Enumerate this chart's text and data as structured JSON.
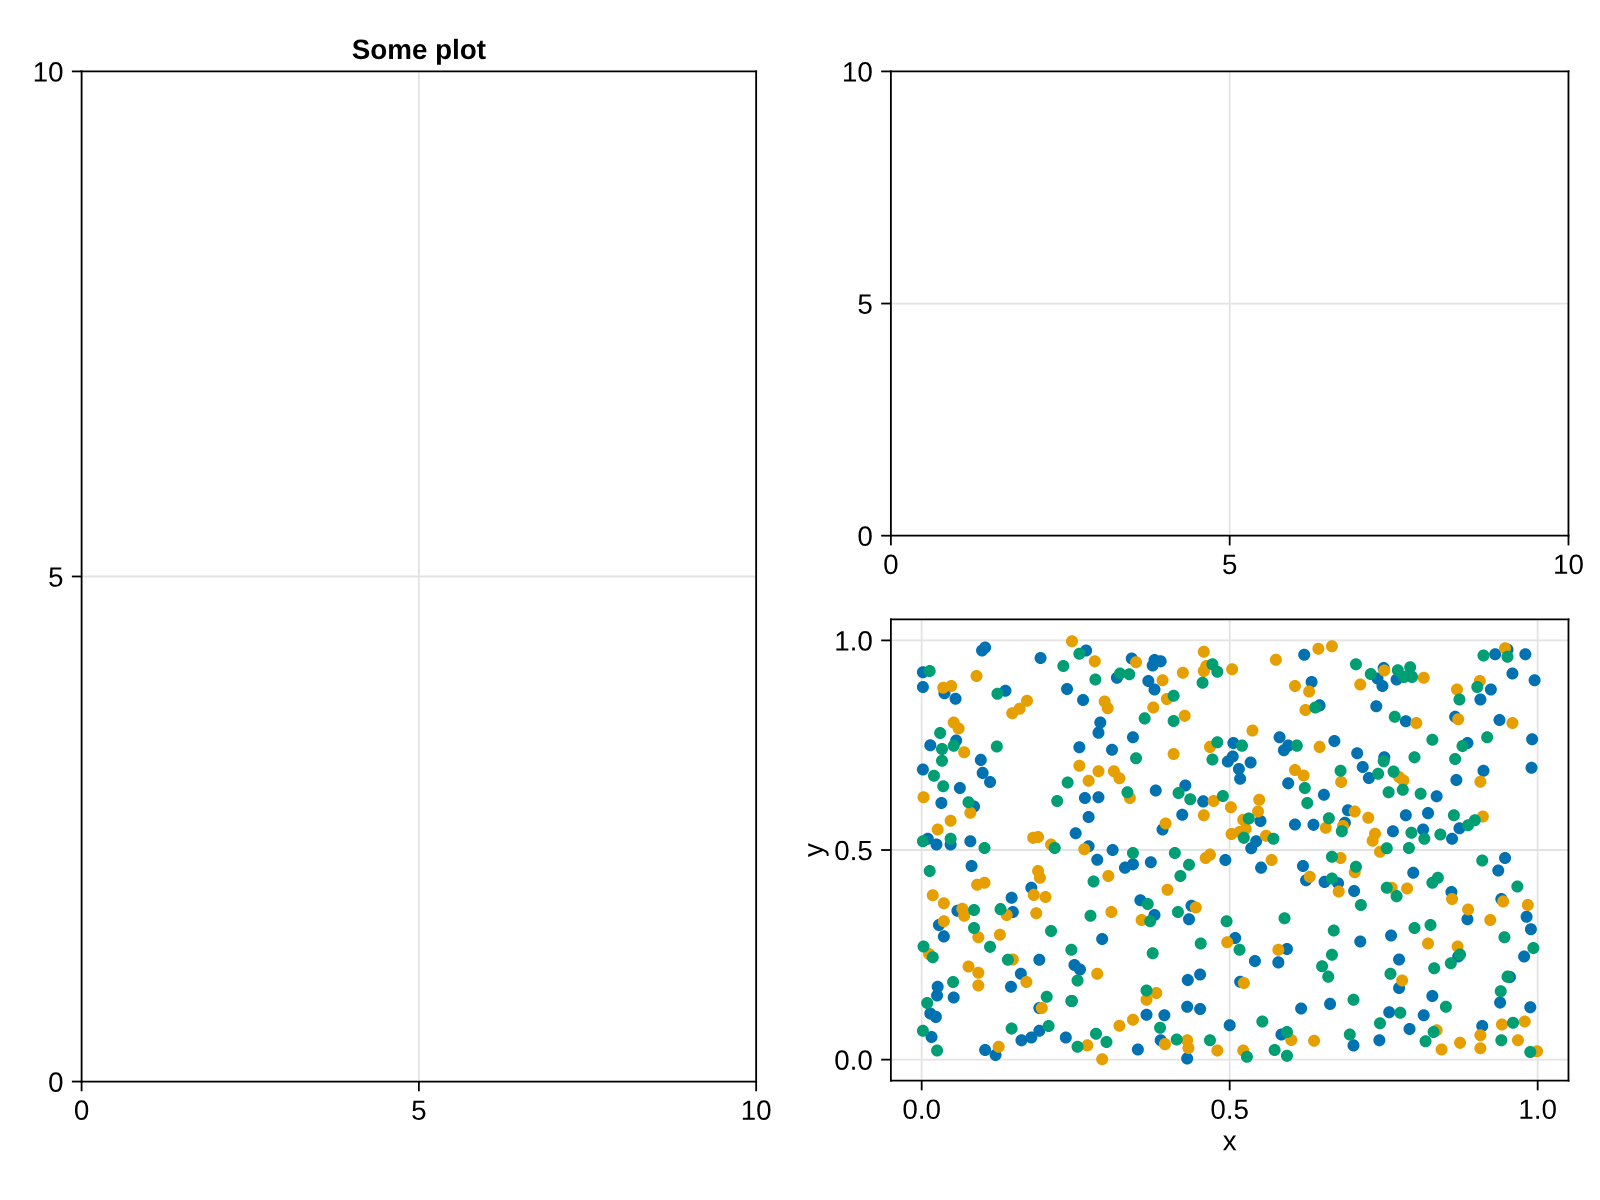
{
  "chart_data": [
    {
      "type": "scatter",
      "title": "Some plot",
      "xlim": [
        0,
        10
      ],
      "ylim": [
        0,
        10
      ],
      "xticks": [
        0,
        5,
        10
      ],
      "yticks": [
        0,
        5,
        10
      ],
      "grid": true
    },
    {
      "type": "scatter",
      "xlim": [
        0,
        10
      ],
      "ylim": [
        0,
        10
      ],
      "xticks": [
        0,
        5,
        10
      ],
      "yticks": [
        0,
        5,
        10
      ],
      "grid": true
    },
    {
      "type": "scatter",
      "xlabel": "x",
      "ylabel": "y",
      "xlim": [
        -0.05,
        1.05
      ],
      "ylim": [
        -0.05,
        1.05
      ],
      "xticks": [
        {
          "value": 0,
          "label": "0.0"
        },
        {
          "value": 0.5,
          "label": "0.5"
        },
        {
          "value": 1,
          "label": "1.0"
        }
      ],
      "yticks": [
        {
          "value": 0,
          "label": "0.0"
        },
        {
          "value": 0.5,
          "label": "0.5"
        },
        {
          "value": 1,
          "label": "1.0"
        }
      ],
      "grid": true,
      "marker": "circle",
      "series": [
        {
          "color": "#0072b2",
          "x": [
            0.103,
            0.098,
            0.267,
            0.193,
            0.002,
            0.317,
            0.002,
            0.037,
            0.055,
            0.136,
            0.236,
            0.262,
            0.29,
            0.287,
            0.056,
            0.014,
            0.256,
            0.309,
            0.096,
            0.002,
            0.099,
            0.111,
            0.062,
            0.032,
            0.085,
            0.265,
            0.287,
            0.271,
            0.25,
            0.01,
            0.024,
            0.047,
            0.079,
            0.271,
            0.31,
            0.341,
            0.378,
            0.388,
            0.375,
            0.368,
            0.378,
            0.621,
            0.633,
            0.646,
            0.343,
            0.581,
            0.595,
            0.588,
            0.67,
            0.506,
            0.497,
            0.505,
            0.534,
            0.515,
            0.517,
            0.595,
            0.653,
            0.428,
            0.457,
            0.38,
            0.423,
            0.391,
            0.55,
            0.543,
            0.535,
            0.606,
            0.636,
            0.687,
            0.692,
            0.74,
            0.748,
            0.75,
            0.771,
            0.738,
            0.786,
            0.951,
            0.931,
            0.98,
            0.959,
            0.995,
            0.924,
            0.907,
            0.866,
            0.938,
            0.886,
            0.991,
            0.707,
            0.716,
            0.726,
            0.751,
            0.99,
            0.912,
            0.868,
            0.836,
            0.786,
            0.822,
            0.873,
            0.765,
            0.814,
            0.861,
            0.285,
            0.081,
            0.178,
            0.146,
            0.058,
            0.148,
            0.028,
            0.036,
            0.293,
            0.191,
            0.248,
            0.257,
            0.161,
            0.145,
            0.026,
            0.025,
            0.052,
            0.191,
            0.243,
            0.014,
            0.023,
            0.016,
            0.162,
            0.178,
            0.191,
            0.234,
            0.103,
            0.12,
            0.33,
            0.343,
            0.372,
            0.493,
            0.551,
            0.619,
            0.624,
            0.654,
            0.676,
            0.355,
            0.378,
            0.438,
            0.434,
            0.509,
            0.541,
            0.593,
            0.579,
            0.432,
            0.452,
            0.517,
            0.431,
            0.452,
            0.616,
            0.663,
            0.365,
            0.394,
            0.388,
            0.5,
            0.584,
            0.351,
            0.431,
            0.947,
            0.936,
            0.798,
            0.702,
            0.86,
            0.941,
            0.982,
            0.989,
            0.886,
            0.712,
            0.762,
            0.978,
            0.871,
            0.775,
            0.775,
            0.955,
            0.939,
            0.829,
            0.988,
            0.759,
            0.815,
            0.792,
            0.91,
            0.701,
            0.743
          ],
          "values": [
            0.983,
            0.976,
            0.976,
            0.958,
            0.924,
            0.911,
            0.889,
            0.874,
            0.861,
            0.88,
            0.884,
            0.858,
            0.804,
            0.78,
            0.761,
            0.75,
            0.745,
            0.739,
            0.715,
            0.692,
            0.684,
            0.662,
            0.648,
            0.612,
            0.604,
            0.624,
            0.626,
            0.579,
            0.54,
            0.527,
            0.513,
            0.513,
            0.521,
            0.509,
            0.5,
            0.957,
            0.953,
            0.95,
            0.94,
            0.903,
            0.883,
            0.966,
            0.901,
            0.845,
            0.769,
            0.769,
            0.749,
            0.738,
            0.76,
            0.755,
            0.711,
            0.723,
            0.709,
            0.693,
            0.67,
            0.659,
            0.632,
            0.654,
            0.616,
            0.642,
            0.584,
            0.549,
            0.569,
            0.521,
            0.504,
            0.561,
            0.56,
            0.565,
            0.595,
            0.909,
            0.891,
            0.934,
            0.907,
            0.843,
            0.807,
            0.978,
            0.967,
            0.967,
            0.921,
            0.905,
            0.883,
            0.859,
            0.818,
            0.81,
            0.755,
            0.764,
            0.731,
            0.698,
            0.672,
            0.721,
            0.696,
            0.689,
            0.667,
            0.628,
            0.583,
            0.588,
            0.552,
            0.545,
            0.549,
            0.527,
            0.477,
            0.462,
            0.41,
            0.386,
            0.355,
            0.352,
            0.321,
            0.294,
            0.288,
            0.238,
            0.226,
            0.215,
            0.205,
            0.174,
            0.174,
            0.153,
            0.148,
            0.123,
            0.14,
            0.11,
            0.102,
            0.054,
            0.046,
            0.053,
            0.069,
            0.053,
            0.023,
            0.011,
            0.458,
            0.466,
            0.471,
            0.476,
            0.458,
            0.462,
            0.428,
            0.424,
            0.421,
            0.38,
            0.345,
            0.367,
            0.335,
            0.29,
            0.235,
            0.264,
            0.232,
            0.19,
            0.203,
            0.186,
            0.126,
            0.121,
            0.122,
            0.133,
            0.107,
            0.106,
            0.046,
            0.082,
            0.06,
            0.024,
            0.003,
            0.481,
            0.451,
            0.446,
            0.402,
            0.4,
            0.383,
            0.341,
            0.311,
            0.335,
            0.282,
            0.296,
            0.246,
            0.246,
            0.239,
            0.171,
            0.197,
            0.136,
            0.152,
            0.125,
            0.113,
            0.106,
            0.073,
            0.08,
            0.034,
            0.046
          ]
        },
        {
          "color": "#e69f00",
          "x": [
            0.244,
            0.281,
            0.089,
            0.035,
            0.048,
            0.297,
            0.302,
            0.171,
            0.159,
            0.147,
            0.052,
            0.06,
            0.069,
            0.256,
            0.287,
            0.312,
            0.321,
            0.271,
            0.003,
            0.079,
            0.047,
            0.026,
            0.181,
            0.189,
            0.21,
            0.264,
            0.348,
            0.338,
            0.458,
            0.458,
            0.462,
            0.504,
            0.424,
            0.391,
            0.398,
            0.376,
            0.427,
            0.575,
            0.644,
            0.666,
            0.606,
            0.629,
            0.623,
            0.537,
            0.646,
            0.468,
            0.409,
            0.606,
            0.62,
            0.681,
            0.474,
            0.502,
            0.548,
            0.546,
            0.458,
            0.396,
            0.522,
            0.526,
            0.503,
            0.516,
            0.559,
            0.656,
            0.684,
            0.712,
            0.751,
            0.815,
            0.803,
            0.947,
            0.906,
            0.869,
            0.871,
            0.959,
            0.775,
            0.782,
            0.907,
            0.703,
            0.725,
            0.911,
            0.736,
            0.732,
            0.744,
            0.189,
            0.192,
            0.09,
            0.102,
            0.303,
            0.018,
            0.036,
            0.182,
            0.201,
            0.066,
            0.069,
            0.138,
            0.186,
            0.308,
            0.036,
            0.092,
            0.127,
            0.012,
            0.148,
            0.076,
            0.092,
            0.285,
            0.092,
            0.17,
            0.195,
            0.321,
            0.269,
            0.125,
            0.293,
            0.461,
            0.468,
            0.568,
            0.63,
            0.68,
            0.677,
            0.399,
            0.357,
            0.445,
            0.496,
            0.579,
            0.523,
            0.381,
            0.365,
            0.343,
            0.395,
            0.431,
            0.433,
            0.48,
            0.6,
            0.637,
            0.522,
            0.703,
            0.763,
            0.788,
            0.861,
            0.944,
            0.984,
            0.887,
            0.923,
            0.822,
            0.87,
            0.78,
            0.836,
            0.907,
            0.907,
            0.942,
            0.979,
            0.874,
            0.844,
            0.968,
            0.999
          ],
          "values": [
            0.998,
            0.95,
            0.915,
            0.887,
            0.891,
            0.854,
            0.838,
            0.856,
            0.837,
            0.826,
            0.804,
            0.79,
            0.733,
            0.701,
            0.688,
            0.688,
            0.671,
            0.665,
            0.626,
            0.589,
            0.57,
            0.549,
            0.529,
            0.531,
            0.513,
            0.502,
            0.948,
            0.624,
            0.973,
            0.927,
            0.939,
            0.931,
            0.923,
            0.905,
            0.86,
            0.84,
            0.82,
            0.954,
            0.98,
            0.986,
            0.891,
            0.878,
            0.834,
            0.785,
            0.746,
            0.746,
            0.729,
            0.691,
            0.678,
            0.662,
            0.617,
            0.602,
            0.62,
            0.592,
            0.583,
            0.563,
            0.572,
            0.551,
            0.538,
            0.543,
            0.534,
            0.553,
            0.557,
            0.895,
            0.928,
            0.911,
            0.803,
            0.981,
            0.903,
            0.883,
            0.812,
            0.803,
            0.674,
            0.666,
            0.663,
            0.592,
            0.577,
            0.58,
            0.539,
            0.522,
            0.496,
            0.45,
            0.434,
            0.417,
            0.422,
            0.438,
            0.392,
            0.373,
            0.393,
            0.388,
            0.36,
            0.343,
            0.345,
            0.349,
            0.352,
            0.33,
            0.292,
            0.298,
            0.252,
            0.239,
            0.222,
            0.207,
            0.205,
            0.177,
            0.185,
            0.123,
            0.081,
            0.034,
            0.031,
            0.001,
            0.481,
            0.489,
            0.476,
            0.436,
            0.481,
            0.401,
            0.405,
            0.333,
            0.363,
            0.28,
            0.262,
            0.183,
            0.159,
            0.143,
            0.095,
            0.037,
            0.046,
            0.028,
            0.022,
            0.047,
            0.045,
            0.022,
            0.447,
            0.41,
            0.408,
            0.383,
            0.377,
            0.369,
            0.358,
            0.333,
            0.277,
            0.27,
            0.189,
            0.07,
            0.058,
            0.027,
            0.084,
            0.091,
            0.04,
            0.024,
            0.046,
            0.02
          ]
        },
        {
          "color": "#009e73",
          "x": [
            0.256,
            0.23,
            0.013,
            0.282,
            0.322,
            0.123,
            0.03,
            0.052,
            0.033,
            0.033,
            0.122,
            0.02,
            0.237,
            0.035,
            0.076,
            0.22,
            0.002,
            0.047,
            0.216,
            0.102,
            0.334,
            0.337,
            0.472,
            0.48,
            0.456,
            0.409,
            0.362,
            0.409,
            0.639,
            0.609,
            0.48,
            0.52,
            0.472,
            0.348,
            0.68,
            0.622,
            0.626,
            0.417,
            0.436,
            0.489,
            0.531,
            0.523,
            0.571,
            0.661,
            0.682,
            0.705,
            0.729,
            0.773,
            0.783,
            0.793,
            0.796,
            0.768,
            0.912,
            0.951,
            0.902,
            0.873,
            0.829,
            0.878,
            0.918,
            0.75,
            0.741,
            0.766,
            0.8,
            0.866,
            0.758,
            0.781,
            0.81,
            0.864,
            0.898,
            0.887,
            0.795,
            0.816,
            0.842,
            0.755,
            0.791,
            0.013,
            0.279,
            0.085,
            0.128,
            0.274,
            0.085,
            0.21,
            0.003,
            0.018,
            0.111,
            0.243,
            0.14,
            0.253,
            0.051,
            0.009,
            0.203,
            0.244,
            0.002,
            0.146,
            0.206,
            0.283,
            0.3,
            0.253,
            0.025,
            0.343,
            0.411,
            0.434,
            0.42,
            0.666,
            0.666,
            0.367,
            0.371,
            0.416,
            0.495,
            0.589,
            0.669,
            0.516,
            0.453,
            0.375,
            0.666,
            0.65,
            0.66,
            0.365,
            0.387,
            0.414,
            0.468,
            0.553,
            0.593,
            0.528,
            0.573,
            0.593,
            0.91,
            0.705,
            0.838,
            0.829,
            0.967,
            0.755,
            0.771,
            0.713,
            0.8,
            0.826,
            0.946,
            0.993,
            0.874,
            0.859,
            0.832,
            0.761,
            0.951,
            0.94,
            0.851,
            0.701,
            0.777,
            0.744,
            0.831,
            0.818,
            0.96,
            0.941,
            0.988,
            0.695
          ],
          "values": [
            0.968,
            0.939,
            0.927,
            0.907,
            0.921,
            0.873,
            0.779,
            0.749,
            0.741,
            0.713,
            0.747,
            0.677,
            0.661,
            0.652,
            0.614,
            0.617,
            0.521,
            0.527,
            0.505,
            0.505,
            0.638,
            0.919,
            0.943,
            0.925,
            0.899,
            0.868,
            0.814,
            0.808,
            0.84,
            0.749,
            0.757,
            0.749,
            0.716,
            0.719,
            0.689,
            0.648,
            0.612,
            0.636,
            0.621,
            0.629,
            0.575,
            0.529,
            0.527,
            0.576,
            0.545,
            0.943,
            0.92,
            0.929,
            0.913,
            0.936,
            0.913,
            0.818,
            0.964,
            0.961,
            0.889,
            0.859,
            0.763,
            0.748,
            0.769,
            0.712,
            0.682,
            0.687,
            0.721,
            0.717,
            0.638,
            0.644,
            0.634,
            0.583,
            0.571,
            0.559,
            0.541,
            0.527,
            0.537,
            0.504,
            0.505,
            0.45,
            0.425,
            0.357,
            0.359,
            0.343,
            0.314,
            0.307,
            0.27,
            0.244,
            0.269,
            0.262,
            0.238,
            0.189,
            0.185,
            0.135,
            0.15,
            0.14,
            0.069,
            0.074,
            0.08,
            0.062,
            0.042,
            0.031,
            0.022,
            0.493,
            0.493,
            0.465,
            0.438,
            0.484,
            0.432,
            0.371,
            0.33,
            0.352,
            0.33,
            0.337,
            0.308,
            0.262,
            0.277,
            0.254,
            0.25,
            0.223,
            0.198,
            0.165,
            0.076,
            0.048,
            0.046,
            0.091,
            0.066,
            0.007,
            0.023,
            0.009,
            0.475,
            0.46,
            0.434,
            0.422,
            0.413,
            0.41,
            0.39,
            0.369,
            0.314,
            0.321,
            0.292,
            0.266,
            0.251,
            0.23,
            0.218,
            0.205,
            0.198,
            0.163,
            0.126,
            0.143,
            0.112,
            0.087,
            0.066,
            0.044,
            0.088,
            0.046,
            0.018,
            0.06
          ]
        }
      ]
    }
  ]
}
